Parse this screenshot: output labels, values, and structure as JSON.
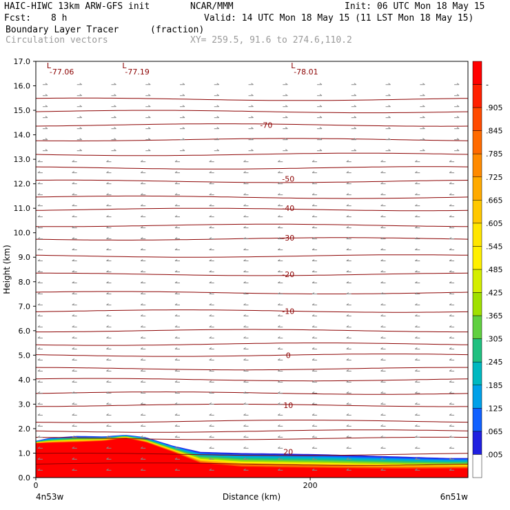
{
  "header": {
    "title_left": "HAIC-HIWC 13km ARW-GFS init",
    "org": "NCAR/MMM",
    "init": "Init: 06 UTC Mon 18 May 15",
    "fcst_label": "Fcst:",
    "fcst_value": "8 h",
    "valid": "Valid: 14 UTC Mon 18 May 15 (11 LST Mon 18 May 15)",
    "field_name": "Boundary Layer Tracer",
    "field_units": "(fraction)",
    "vector_label": "Circulation vectors",
    "xy_label": "XY= 259.5, 91.6 to 274.6,110.2"
  },
  "chart_data": {
    "type": "heatmap",
    "ylabel": "Height (km)",
    "xlabel": "Distance (km)",
    "ylim": [
      0,
      17
    ],
    "yticks": [
      "0.0",
      "1.0",
      "2.0",
      "3.0",
      "4.0",
      "5.0",
      "6.0",
      "7.0",
      "8.0",
      "9.0",
      "10.0",
      "11.0",
      "12.0",
      "13.0",
      "14.0",
      "15.0",
      "16.0",
      "17.0"
    ],
    "xticks": [
      {
        "value": 0,
        "label": "0"
      },
      {
        "value": 200,
        "label": "200"
      }
    ],
    "x_range_km": [
      0,
      315
    ],
    "x_end_labels": {
      "left": "4n53w",
      "right": "6n51w"
    },
    "low_markers": [
      {
        "x_km": 10,
        "symbol": "L",
        "value": "-77.06"
      },
      {
        "x_km": 65,
        "symbol": "L",
        "value": "-77.19"
      },
      {
        "x_km": 188,
        "symbol": "L",
        "value": "-78.01"
      }
    ],
    "isotherm_labels": [
      {
        "value": "-70",
        "x_km": 168,
        "y_km": 14.4
      },
      {
        "value": "-50",
        "x_km": 184,
        "y_km": 12.2
      },
      {
        "value": "-40",
        "x_km": 184,
        "y_km": 11.0
      },
      {
        "value": "-30",
        "x_km": 184,
        "y_km": 9.8
      },
      {
        "value": "-20",
        "x_km": 184,
        "y_km": 8.3
      },
      {
        "value": "-10",
        "x_km": 184,
        "y_km": 6.8
      },
      {
        "value": "0",
        "x_km": 184,
        "y_km": 5.0
      },
      {
        "value": "10",
        "x_km": 184,
        "y_km": 2.95
      },
      {
        "value": "20",
        "x_km": 184,
        "y_km": 1.05
      }
    ],
    "isotherm_heights_km": [
      0.55,
      0.95,
      1.6,
      1.9,
      2.3,
      2.95,
      3.45,
      4.0,
      4.45,
      5.0,
      5.45,
      6.0,
      6.8,
      7.55,
      8.3,
      9.05,
      9.75,
      10.3,
      10.95,
      11.45,
      12.1,
      12.65,
      13.2,
      13.8,
      14.4,
      14.95,
      15.45
    ],
    "colorbar": {
      "levels": [
        "-",
        ".905",
        ".845",
        ".785",
        ".725",
        ".665",
        ".605",
        ".545",
        ".485",
        ".425",
        ".365",
        ".305",
        ".245",
        ".185",
        ".125",
        ".065",
        ".005"
      ],
      "colors": [
        "#ff0000",
        "#ff2000",
        "#ff4a00",
        "#ff6a00",
        "#ff8a00",
        "#ffaa00",
        "#ffc800",
        "#ffe600",
        "#fff000",
        "#d4ee00",
        "#a0e000",
        "#60d040",
        "#20c080",
        "#00b8c0",
        "#00a0e8",
        "#1060ff",
        "#2020e0",
        "#ffffff"
      ]
    },
    "tracer_profile": {
      "x_km": [
        0,
        10,
        30,
        50,
        65,
        80,
        100,
        120,
        150,
        180,
        210,
        240,
        270,
        300,
        315
      ],
      "top_km": [
        1.5,
        1.62,
        1.7,
        1.68,
        1.75,
        1.65,
        1.3,
        1.05,
        1.0,
        0.98,
        0.95,
        0.9,
        0.85,
        0.8,
        0.8
      ],
      "core_top_km": [
        1.4,
        1.42,
        1.45,
        1.5,
        1.62,
        1.45,
        1.05,
        0.6,
        0.45,
        0.42,
        0.4,
        0.38,
        0.37,
        0.38,
        0.38
      ]
    }
  }
}
